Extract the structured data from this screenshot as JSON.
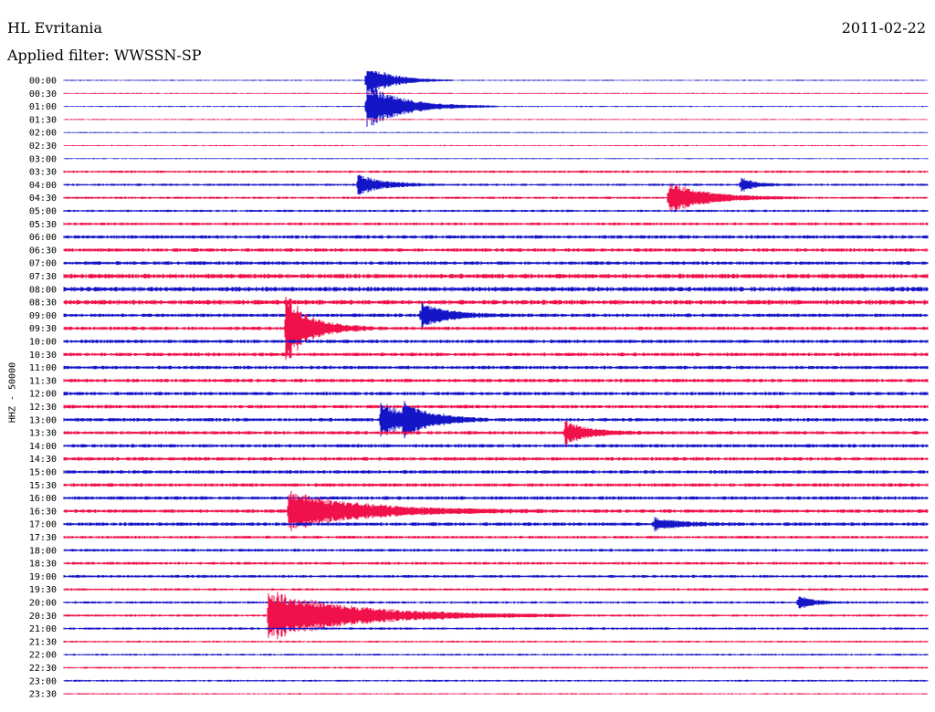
{
  "header": {
    "station": "HL Evritania",
    "date": "2011-02-22",
    "filter": "Applied filter: WWSSN-SP"
  },
  "chart_data": {
    "type": "helicorder",
    "title": "HL Evritania",
    "date": "2011-02-22",
    "ylabel": "HHZ - 50000",
    "colors": [
      "#1515c8",
      "#f0104a"
    ],
    "rows": [
      "00:00",
      "00:30",
      "01:00",
      "01:30",
      "02:00",
      "02:30",
      "03:00",
      "03:30",
      "04:00",
      "04:30",
      "05:00",
      "05:30",
      "06:00",
      "06:30",
      "07:00",
      "07:30",
      "08:00",
      "08:30",
      "09:00",
      "09:30",
      "10:00",
      "10:30",
      "11:00",
      "11:30",
      "12:00",
      "12:30",
      "13:00",
      "13:30",
      "14:00",
      "14:30",
      "15:00",
      "15:30",
      "16:00",
      "16:30",
      "17:00",
      "17:30",
      "18:00",
      "18:30",
      "19:00",
      "19:30",
      "20:00",
      "20:30",
      "21:00",
      "21:30",
      "22:00",
      "22:30",
      "23:00",
      "23:30"
    ],
    "noise_amplitude": [
      0.5,
      0.5,
      0.5,
      0.5,
      0.5,
      0.5,
      0.5,
      1,
      1,
      1,
      1,
      1.2,
      1.5,
      1.5,
      1.5,
      2,
      2,
      2,
      1.5,
      1.5,
      1.5,
      1.5,
      1.5,
      1.5,
      1.5,
      1.5,
      1.5,
      1.5,
      1.5,
      1.5,
      1.5,
      1.5,
      1.5,
      1.5,
      1.5,
      1.2,
      1.2,
      1.2,
      1.2,
      1,
      1,
      1,
      1,
      0.8,
      0.8,
      0.8,
      0.8,
      0.6
    ],
    "events": [
      {
        "row": 0,
        "minute": 10.5,
        "amplitude": 20,
        "duration": 1
      },
      {
        "row": 2,
        "minute": 10.5,
        "amplitude": 25,
        "duration": 1.5
      },
      {
        "row": 8,
        "minute": 10.2,
        "amplitude": 12,
        "duration": 1
      },
      {
        "row": 9,
        "minute": 21,
        "amplitude": 18,
        "duration": 1.5
      },
      {
        "row": 8,
        "minute": 23.5,
        "amplitude": 8,
        "duration": 0.6
      },
      {
        "row": 18,
        "minute": 12.4,
        "amplitude": 15,
        "duration": 1
      },
      {
        "row": 19,
        "minute": 7.7,
        "amplitude": 40,
        "duration": 1
      },
      {
        "row": 26,
        "minute": 11,
        "amplitude": 20,
        "duration": 1.2
      },
      {
        "row": 26,
        "minute": 11.8,
        "amplitude": 14,
        "duration": 1
      },
      {
        "row": 27,
        "minute": 17.4,
        "amplitude": 12,
        "duration": 1
      },
      {
        "row": 33,
        "minute": 7.8,
        "amplitude": 22,
        "duration": 3
      },
      {
        "row": 34,
        "minute": 20.5,
        "amplitude": 7,
        "duration": 1
      },
      {
        "row": 40,
        "minute": 25.5,
        "amplitude": 8,
        "duration": 0.6
      },
      {
        "row": 41,
        "minute": 7.1,
        "amplitude": 28,
        "duration": 3.5
      }
    ]
  }
}
